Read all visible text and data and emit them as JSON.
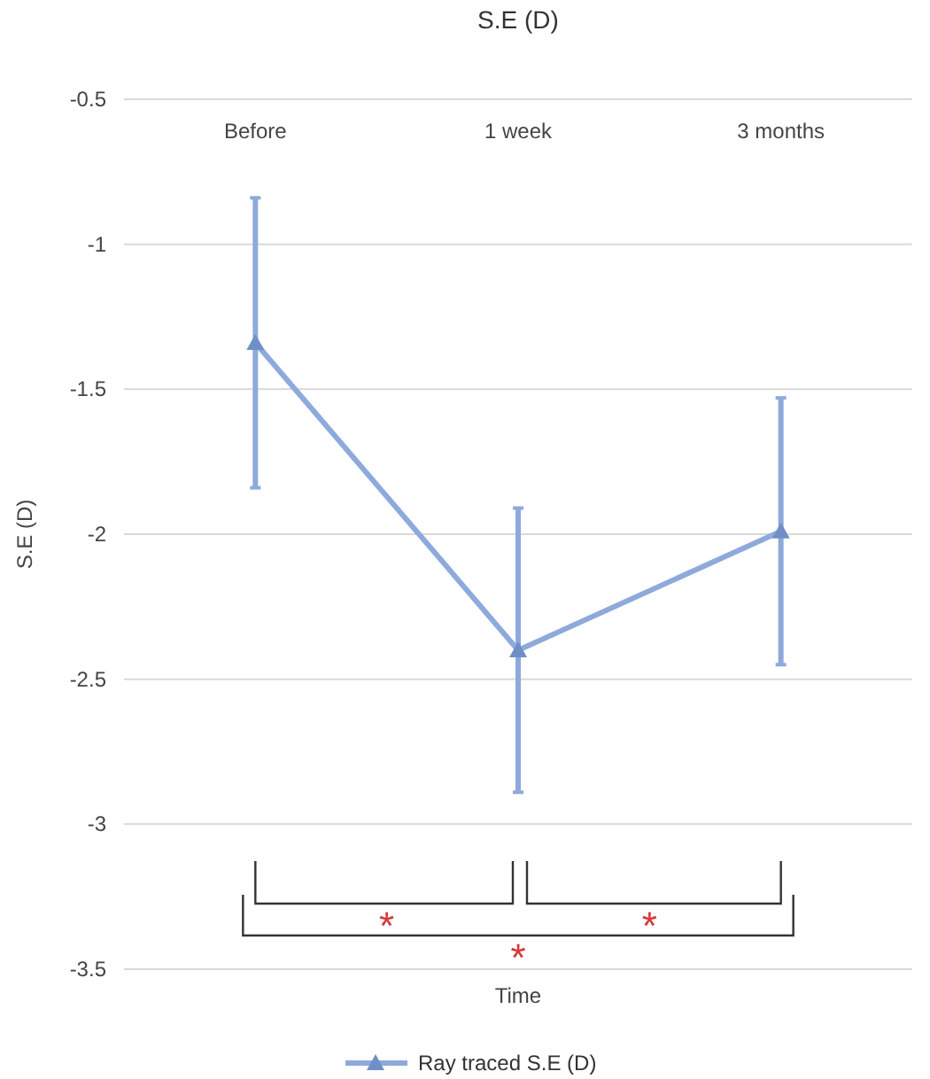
{
  "chart_data": {
    "type": "line",
    "title": "S.E (D)",
    "xlabel": "Time",
    "ylabel": "S.E (D)",
    "categories": [
      "Before",
      "1 week",
      "3 months"
    ],
    "series": [
      {
        "name": "Ray traced S.E (D)",
        "color": "#8eaadb",
        "values": [
          -1.34,
          -2.4,
          -1.99
        ],
        "errors": [
          0.5,
          0.49,
          0.46
        ]
      }
    ],
    "ylim": [
      -3.5,
      -0.5
    ],
    "yticks": [
      -0.5,
      -1,
      -1.5,
      -2,
      -2.5,
      -3,
      -3.5
    ],
    "grid": "y",
    "legend": "bottom",
    "marker": "triangle",
    "line_style": "solid",
    "annotations": [
      "*",
      "*",
      "*"
    ]
  }
}
